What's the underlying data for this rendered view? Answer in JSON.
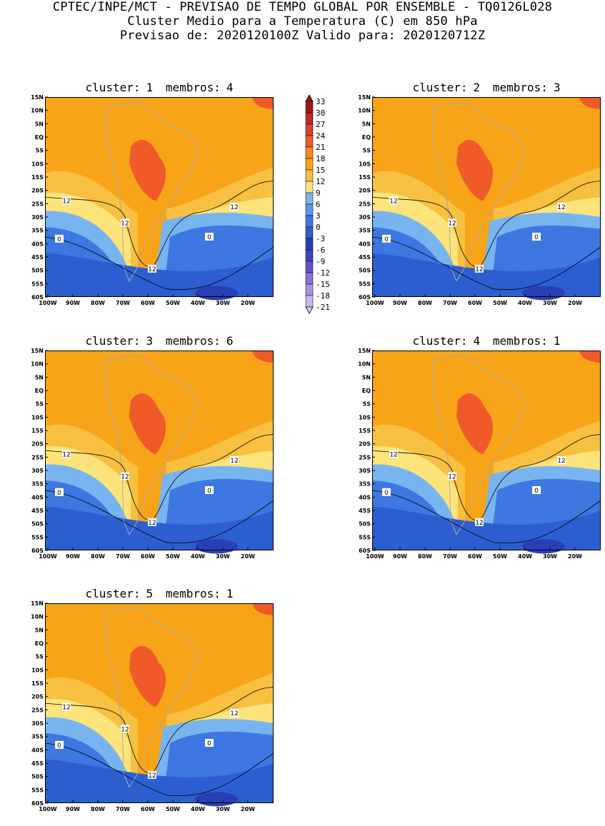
{
  "header": {
    "line1": "CPTEC/INPE/MCT - PREVISAO DE TEMPO GLOBAL POR ENSEMBLE - TQ0126L028",
    "line2": "Cluster Medio para a Temperatura (C) em 850 hPa",
    "line3": "Previsao de: 2020120100Z   Valido para: 2020120712Z"
  },
  "panels": [
    {
      "cluster_label": "cluster:",
      "cluster": "1",
      "membros_label": "membros:",
      "membros": "4"
    },
    {
      "cluster_label": "cluster:",
      "cluster": "2",
      "membros_label": "membros:",
      "membros": "3"
    },
    {
      "cluster_label": "cluster:",
      "cluster": "3",
      "membros_label": "membros:",
      "membros": "6"
    },
    {
      "cluster_label": "cluster:",
      "cluster": "4",
      "membros_label": "membros:",
      "membros": "1"
    },
    {
      "cluster_label": "cluster:",
      "cluster": "5",
      "membros_label": "membros:",
      "membros": "1"
    }
  ],
  "lat_ticks": [
    "15N",
    "10N",
    "5N",
    "EQ",
    "5S",
    "10S",
    "15S",
    "20S",
    "25S",
    "30S",
    "35S",
    "40S",
    "45S",
    "50S",
    "55S",
    "60S"
  ],
  "lon_ticks": [
    "100W",
    "90W",
    "80W",
    "70W",
    "60W",
    "50W",
    "40W",
    "30W",
    "20W"
  ],
  "contour_labels": {
    "twelve": "12",
    "zero": "0"
  },
  "colorbar": {
    "labels": [
      "33",
      "30",
      "27",
      "24",
      "21",
      "18",
      "15",
      "12",
      "9",
      "6",
      "3",
      "0",
      "-3",
      "-6",
      "-9",
      "-12",
      "-15",
      "-18",
      "-21"
    ],
    "colors": [
      "#a01818",
      "#c02828",
      "#d84030",
      "#f05a28",
      "#f88a1c",
      "#f8a418",
      "#f8c040",
      "#fce47a",
      "#78b4f0",
      "#5898ec",
      "#3c78e0",
      "#2c5ed0",
      "#2840b4",
      "#4040c0",
      "#6454cc",
      "#8870d8",
      "#a890e0",
      "#c8b8ec"
    ]
  },
  "palette": {
    "hot": "#f05a28",
    "warm": "#f8a418",
    "mild": "#f8c040",
    "pale": "#fce47a",
    "cool": "#78b4f0",
    "cold": "#3c78e0",
    "colder": "#2c5ed0",
    "deep": "#2840b4",
    "land": "#a8a8a8",
    "contour": "#000000"
  }
}
